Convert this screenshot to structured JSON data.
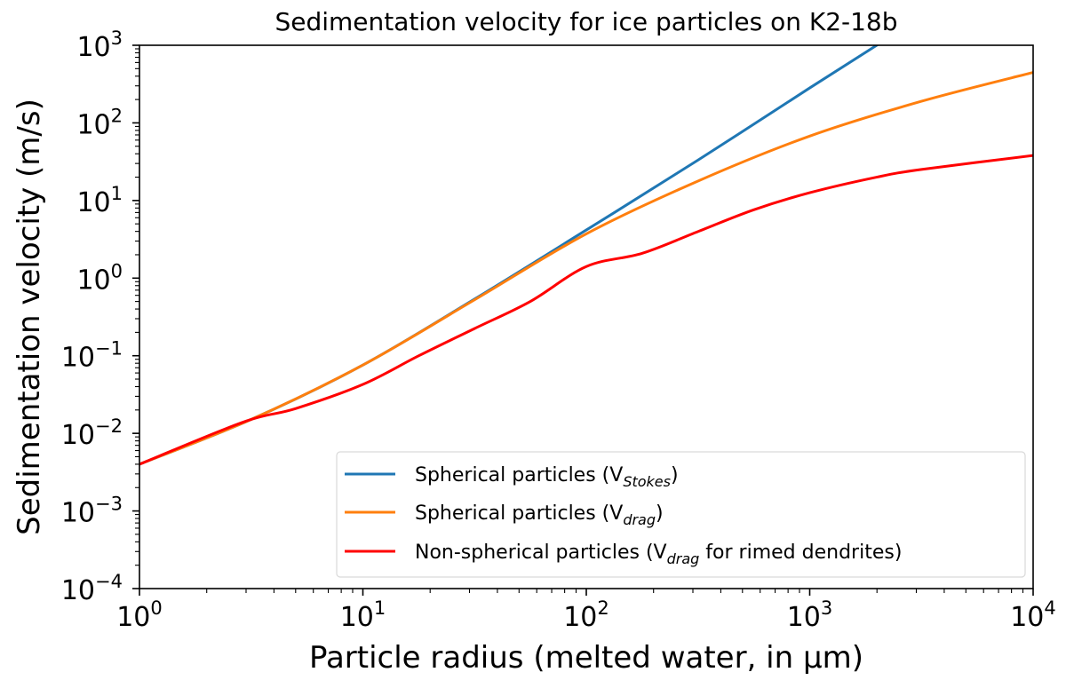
{
  "chart_data": {
    "type": "line",
    "title": "Sedimentation velocity for ice particles on K2-18b",
    "xlabel": "Particle radius (melted water, in μm)",
    "ylabel": "Sedimentation velocity (m/s)",
    "xscale": "log",
    "yscale": "log",
    "xlim": [
      1,
      10000
    ],
    "ylim": [
      0.0001,
      1000
    ],
    "x_ticks": [
      {
        "base": "10",
        "exp": "0"
      },
      {
        "base": "10",
        "exp": "1"
      },
      {
        "base": "10",
        "exp": "2"
      },
      {
        "base": "10",
        "exp": "3"
      },
      {
        "base": "10",
        "exp": "4"
      }
    ],
    "y_ticks": [
      {
        "base": "10",
        "exp": "−4"
      },
      {
        "base": "10",
        "exp": "−3"
      },
      {
        "base": "10",
        "exp": "−2"
      },
      {
        "base": "10",
        "exp": "−1"
      },
      {
        "base": "10",
        "exp": "0"
      },
      {
        "base": "10",
        "exp": "1"
      },
      {
        "base": "10",
        "exp": "2"
      },
      {
        "base": "10",
        "exp": "3"
      }
    ],
    "grid": false,
    "legend_position": "lower-right",
    "series": [
      {
        "name": "Spherical particles (V_Stokes)",
        "label_main": "Spherical particles (V",
        "label_sub": "Stokes",
        "label_tail": ")",
        "color": "#1f77b4",
        "x": [
          1,
          3.16,
          10,
          31.6,
          100,
          316,
          1000,
          1995,
          3162
        ],
        "y": [
          0.004,
          0.0151,
          0.0759,
          0.537,
          4.17,
          33.1,
          282,
          1000,
          2239
        ]
      },
      {
        "name": "Spherical particles (V_drag)",
        "label_main": "Spherical particles (V",
        "label_sub": "drag",
        "label_tail": ")",
        "color": "#ff7f0e",
        "x": [
          1,
          3.16,
          10,
          31.6,
          100,
          316,
          1000,
          3162,
          10000
        ],
        "y": [
          0.004,
          0.0151,
          0.0759,
          0.525,
          3.72,
          17.8,
          67.6,
          190,
          447
        ]
      },
      {
        "name": "Non-spherical particles (V_drag for rimed dendrites)",
        "label_main": "Non-spherical particles (V",
        "label_sub": "drag",
        "label_tail": " for rimed dendrites)",
        "color": "#ff0000",
        "x": [
          1,
          2.88,
          5.01,
          10,
          17.8,
          31.6,
          56.2,
          100,
          178,
          316,
          562,
          1000,
          1995,
          3162,
          10000
        ],
        "y": [
          0.004,
          0.0138,
          0.0209,
          0.0427,
          0.1,
          0.224,
          0.501,
          1.41,
          2.09,
          3.98,
          7.59,
          12.6,
          20,
          25.1,
          38
        ]
      }
    ]
  }
}
